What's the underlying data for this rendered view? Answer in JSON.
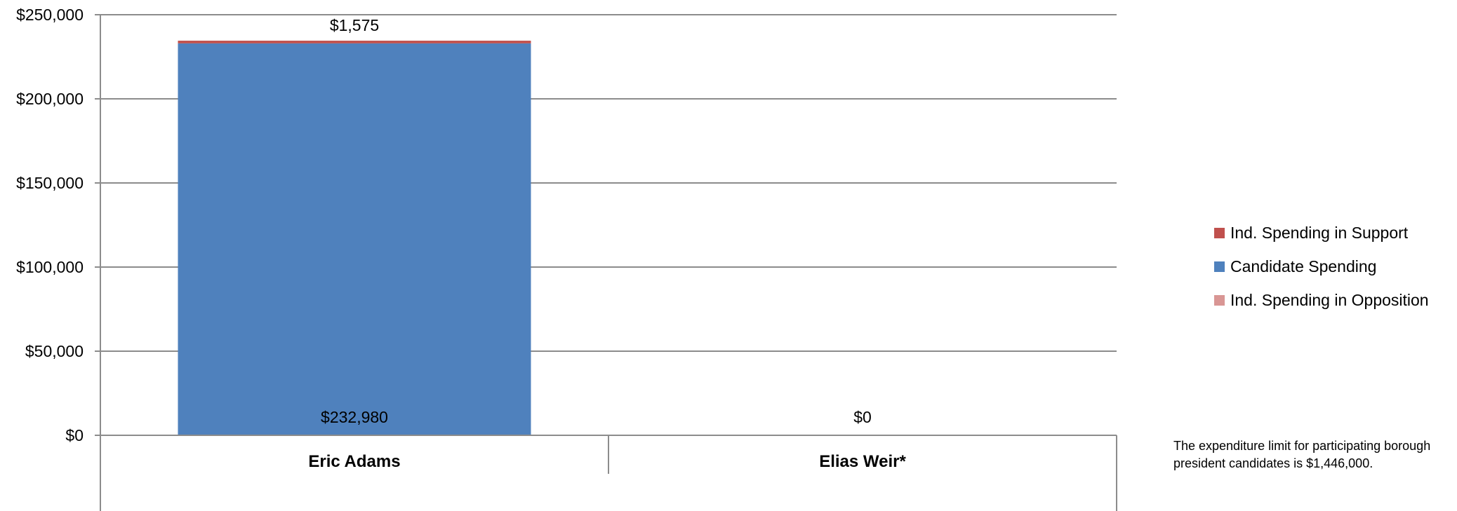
{
  "chart_data": {
    "type": "bar",
    "stacked": true,
    "categories": [
      "Eric Adams",
      "Elias Weir*"
    ],
    "series": [
      {
        "name": "Candidate Spending",
        "values": [
          232980,
          0
        ],
        "color": "#4F81BD"
      },
      {
        "name": "Ind. Spending in Support",
        "values": [
          1575,
          0
        ],
        "color": "#C0504D"
      },
      {
        "name": "Ind. Spending in Opposition",
        "values": [
          0,
          0
        ],
        "color": "#D99694"
      }
    ],
    "data_labels": [
      {
        "category": "Eric Adams",
        "text": "$232,980",
        "position": "bottom"
      },
      {
        "category": "Eric Adams",
        "text": "$1,575",
        "position": "top"
      },
      {
        "category": "Elias Weir*",
        "text": "$0",
        "position": "bottom"
      }
    ],
    "y_ticks": [
      "$0",
      "$50,000",
      "$100,000",
      "$150,000",
      "$200,000",
      "$250,000"
    ],
    "ylim": [
      0,
      250000
    ],
    "grid": true,
    "legend_position": "right"
  },
  "legend": {
    "items": [
      {
        "label": "Ind. Spending in Support",
        "color": "#C0504D"
      },
      {
        "label": "Candidate Spending",
        "color": "#4F81BD"
      },
      {
        "label": "Ind. Spending in Opposition",
        "color": "#D99694"
      }
    ]
  },
  "footnote": "The expenditure limit for participating borough president candidates is $1,446,000."
}
